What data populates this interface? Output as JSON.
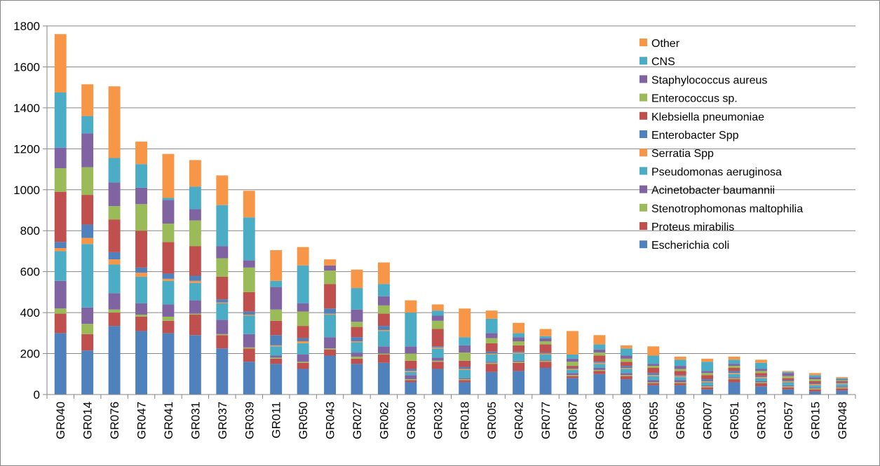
{
  "chart_data": {
    "type": "bar",
    "stacked": true,
    "categories": [
      "GR040",
      "GR014",
      "GR076",
      "GR047",
      "GR041",
      "GR031",
      "GR037",
      "GR039",
      "GR011",
      "GR050",
      "GR043",
      "GR027",
      "GR062",
      "GR030",
      "GR032",
      "GR018",
      "GR005",
      "GR042",
      "GR077",
      "GR067",
      "GR026",
      "GR068",
      "GR055",
      "GR056",
      "GR007",
      "GR051",
      "GR013",
      "GR057",
      "GR015",
      "GR048"
    ],
    "ylim": [
      0,
      1800
    ],
    "yticks": [
      0,
      200,
      400,
      600,
      800,
      1000,
      1200,
      1400,
      1600,
      1800
    ],
    "grid": true,
    "legend_position": "right",
    "series": [
      {
        "name": "Escherichia coli",
        "color": "#4F81BD",
        "values": [
          300,
          215,
          335,
          310,
          300,
          290,
          225,
          160,
          150,
          125,
          190,
          150,
          155,
          60,
          125,
          60,
          110,
          115,
          130,
          80,
          100,
          75,
          45,
          45,
          25,
          60,
          40,
          25,
          15,
          20
        ]
      },
      {
        "name": "Proteus mirabilis",
        "color": "#C0504D",
        "values": [
          95,
          80,
          65,
          70,
          60,
          100,
          65,
          65,
          25,
          30,
          30,
          25,
          40,
          10,
          35,
          10,
          40,
          40,
          30,
          10,
          15,
          15,
          10,
          10,
          10,
          15,
          15,
          10,
          10,
          10
        ]
      },
      {
        "name": "Stenotrophomonas maltophilia",
        "color": "#9BBB59",
        "values": [
          25,
          50,
          15,
          10,
          20,
          5,
          5,
          5,
          5,
          5,
          5,
          10,
          5,
          5,
          5,
          5,
          5,
          5,
          5,
          5,
          5,
          5,
          5,
          5,
          5,
          5,
          5,
          5,
          5,
          5
        ]
      },
      {
        "name": "Acinetobacter baumannii",
        "color": "#8064A2",
        "values": [
          135,
          80,
          80,
          55,
          60,
          65,
          70,
          65,
          10,
          35,
          55,
          20,
          35,
          20,
          15,
          5,
          5,
          5,
          5,
          10,
          10,
          10,
          10,
          10,
          5,
          5,
          5,
          5,
          5,
          5
        ]
      },
      {
        "name": "Pseudomonas aeruginosa",
        "color": "#4BACC6",
        "values": [
          145,
          310,
          140,
          130,
          115,
          85,
          80,
          90,
          45,
          55,
          110,
          50,
          75,
          15,
          45,
          40,
          35,
          35,
          25,
          15,
          20,
          20,
          20,
          15,
          15,
          15,
          15,
          15,
          10,
          10
        ]
      },
      {
        "name": "Serratia Spp",
        "color": "#F79646",
        "values": [
          15,
          30,
          25,
          20,
          10,
          10,
          5,
          5,
          5,
          10,
          5,
          5,
          5,
          5,
          5,
          5,
          5,
          5,
          5,
          5,
          5,
          5,
          5,
          5,
          5,
          5,
          5,
          5,
          5,
          5
        ]
      },
      {
        "name": "Enterobacter Spp",
        "color": "#4F81BD",
        "values": [
          30,
          65,
          35,
          25,
          25,
          25,
          15,
          15,
          50,
          15,
          25,
          20,
          20,
          10,
          5,
          10,
          10,
          5,
          5,
          5,
          5,
          10,
          10,
          5,
          10,
          10,
          5,
          5,
          5,
          5
        ]
      },
      {
        "name": "Klebsiella pneumoniae",
        "color": "#C0504D",
        "values": [
          245,
          145,
          160,
          180,
          155,
          145,
          110,
          95,
          70,
          60,
          120,
          50,
          60,
          40,
          85,
          30,
          40,
          30,
          40,
          10,
          30,
          20,
          25,
          20,
          20,
          15,
          15,
          10,
          10,
          5
        ]
      },
      {
        "name": "Enterococcus sp.",
        "color": "#9BBB59",
        "values": [
          115,
          135,
          65,
          130,
          90,
          125,
          90,
          120,
          55,
          70,
          65,
          25,
          40,
          35,
          40,
          40,
          25,
          20,
          15,
          20,
          15,
          15,
          10,
          10,
          10,
          10,
          10,
          10,
          10,
          5
        ]
      },
      {
        "name": "Staphylococcus aureus",
        "color": "#8064A2",
        "values": [
          100,
          165,
          115,
          80,
          115,
          55,
          60,
          35,
          110,
          40,
          25,
          60,
          45,
          35,
          25,
          35,
          25,
          20,
          15,
          15,
          15,
          15,
          10,
          15,
          10,
          10,
          10,
          15,
          10,
          5
        ]
      },
      {
        "name": "CNS",
        "color": "#4BACC6",
        "values": [
          270,
          85,
          120,
          115,
          10,
          110,
          200,
          210,
          30,
          185,
          0,
          105,
          60,
          165,
          25,
          40,
          70,
          20,
          10,
          20,
          25,
          35,
          40,
          30,
          45,
          20,
          30,
          5,
          10,
          5
        ]
      },
      {
        "name": "Other",
        "color": "#F79646",
        "values": [
          285,
          155,
          350,
          110,
          215,
          130,
          145,
          130,
          150,
          90,
          30,
          90,
          105,
          60,
          30,
          140,
          40,
          50,
          35,
          115,
          45,
          15,
          45,
          15,
          15,
          15,
          15,
          5,
          10,
          5
        ]
      }
    ]
  }
}
